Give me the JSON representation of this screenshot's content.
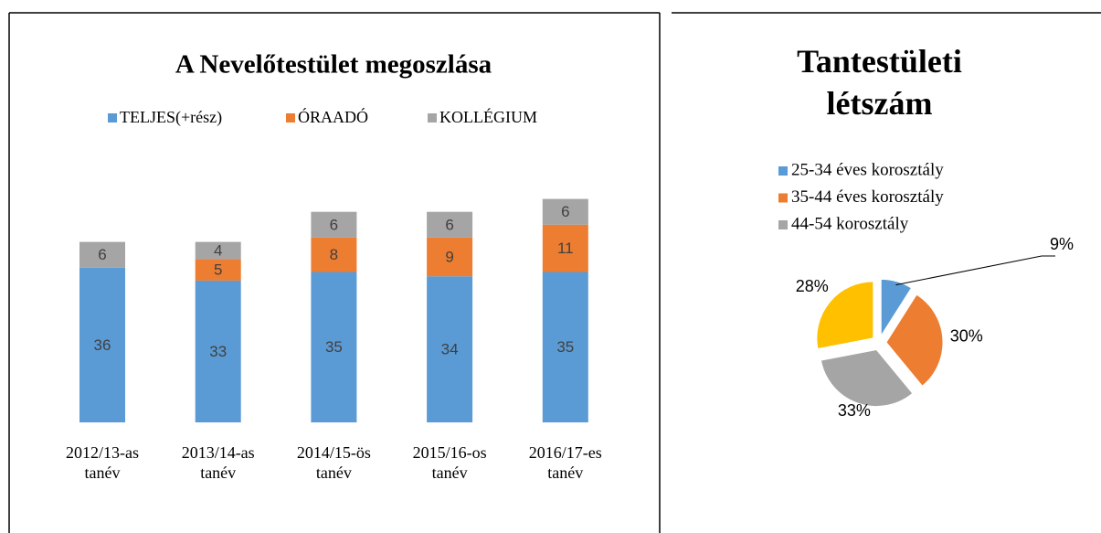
{
  "chart_data": [
    {
      "type": "stacked_bar",
      "title": "A Nevelőtestület megoszlása",
      "categories": [
        "2012/13-as tanév",
        "2013/14-as tanév",
        "2014/15-ös tanév",
        "2015/16-os tanév",
        "2016/17-es tanév"
      ],
      "series": [
        {
          "name": "TELJES(+rész)",
          "color": "#5b9bd5",
          "values": [
            36,
            33,
            35,
            34,
            35
          ]
        },
        {
          "name": "ÓRAADÓ",
          "color": "#ed7d31",
          "values": [
            null,
            5,
            8,
            9,
            11
          ]
        },
        {
          "name": "KOLLÉGIUM",
          "color": "#a5a5a5",
          "values": [
            6,
            4,
            6,
            6,
            6
          ]
        }
      ],
      "legend": "top"
    },
    {
      "type": "pie",
      "title": "Tantestületi létszám",
      "categories": [
        "25-34 éves korosztály",
        "35-44 éves korosztály",
        "44-54 korosztály",
        null
      ],
      "values": [
        9,
        30,
        33,
        28
      ],
      "value_labels": [
        "9%",
        "30%",
        "33%",
        "28%"
      ],
      "colors": [
        "#5b9bd5",
        "#ed7d31",
        "#a5a5a5",
        "#ffc000"
      ],
      "legend": "top"
    }
  ]
}
